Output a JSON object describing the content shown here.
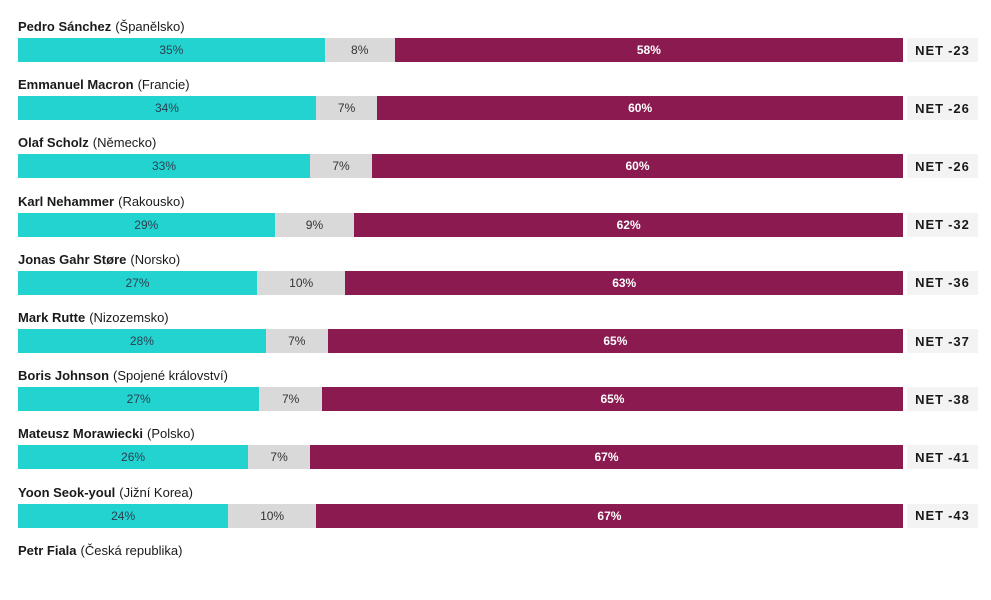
{
  "chart_data": {
    "type": "bar",
    "orientation": "horizontal",
    "stacked": true,
    "colors": {
      "approve": "#22d3cf",
      "dont_know": "#d9d9d9",
      "disapprove": "#8a1a4f"
    },
    "net_label": "NET",
    "rows": [
      {
        "leader": "Pedro Sánchez",
        "country": "(Španělsko)",
        "approve": 35,
        "dont_know": 8,
        "disapprove": 58,
        "approve_label": "35%",
        "dont_know_label": "8%",
        "disapprove_label": "58%",
        "net": "-23"
      },
      {
        "leader": "Emmanuel Macron",
        "country": "(Francie)",
        "approve": 34,
        "dont_know": 7,
        "disapprove": 60,
        "approve_label": "34%",
        "dont_know_label": "7%",
        "disapprove_label": "60%",
        "net": "-26"
      },
      {
        "leader": "Olaf Scholz",
        "country": "(Německo)",
        "approve": 33,
        "dont_know": 7,
        "disapprove": 60,
        "approve_label": "33%",
        "dont_know_label": "7%",
        "disapprove_label": "60%",
        "net": "-26"
      },
      {
        "leader": "Karl Nehammer",
        "country": "(Rakousko)",
        "approve": 29,
        "dont_know": 9,
        "disapprove": 62,
        "approve_label": "29%",
        "dont_know_label": "9%",
        "disapprove_label": "62%",
        "net": "-32"
      },
      {
        "leader": "Jonas Gahr Støre",
        "country": "(Norsko)",
        "approve": 27,
        "dont_know": 10,
        "disapprove": 63,
        "approve_label": "27%",
        "dont_know_label": "10%",
        "disapprove_label": "63%",
        "net": "-36"
      },
      {
        "leader": "Mark Rutte",
        "country": "(Nizozemsko)",
        "approve": 28,
        "dont_know": 7,
        "disapprove": 65,
        "approve_label": "28%",
        "dont_know_label": "7%",
        "disapprove_label": "65%",
        "net": "-37"
      },
      {
        "leader": "Boris Johnson",
        "country": "(Spojené království)",
        "approve": 27,
        "dont_know": 7,
        "disapprove": 65,
        "approve_label": "27%",
        "dont_know_label": "7%",
        "disapprove_label": "65%",
        "net": "-38"
      },
      {
        "leader": "Mateusz Morawiecki",
        "country": "(Polsko)",
        "approve": 26,
        "dont_know": 7,
        "disapprove": 67,
        "approve_label": "26%",
        "dont_know_label": "7%",
        "disapprove_label": "67%",
        "net": "-41"
      },
      {
        "leader": "Yoon Seok-youl",
        "country": "(Jižní Korea)",
        "approve": 24,
        "dont_know": 10,
        "disapprove": 67,
        "approve_label": "24%",
        "dont_know_label": "10%",
        "disapprove_label": "67%",
        "net": "-43"
      },
      {
        "leader": "Petr Fiala",
        "country": "(Česká republika)"
      }
    ]
  }
}
